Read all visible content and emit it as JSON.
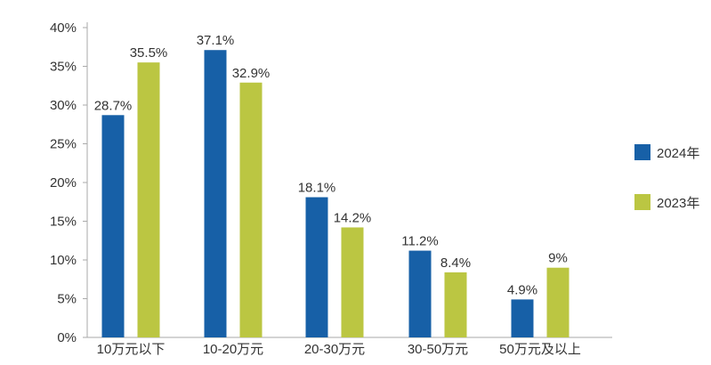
{
  "chart_data": {
    "type": "bar",
    "categories": [
      "10万元以下",
      "10-20万元",
      "20-30万元",
      "30-50万元",
      "50万元及以上"
    ],
    "series": [
      {
        "name": "2024年",
        "color": "#1760a7",
        "values": [
          28.7,
          37.1,
          18.1,
          11.2,
          4.9
        ],
        "labels": [
          "28.7%",
          "37.1%",
          "18.1%",
          "11.2%",
          "4.9%"
        ]
      },
      {
        "name": "2023年",
        "color": "#bbc642",
        "values": [
          35.5,
          32.9,
          14.2,
          8.4,
          9
        ],
        "labels": [
          "35.5%",
          "32.9%",
          "14.2%",
          "8.4%",
          "9%"
        ]
      }
    ],
    "y_ticks": [
      "0%",
      "5%",
      "10%",
      "15%",
      "20%",
      "25%",
      "30%",
      "35%",
      "40%"
    ],
    "ylim": [
      0,
      40
    ],
    "grid": false,
    "legend_position": "right",
    "axis_color": "#aaaaaa"
  }
}
